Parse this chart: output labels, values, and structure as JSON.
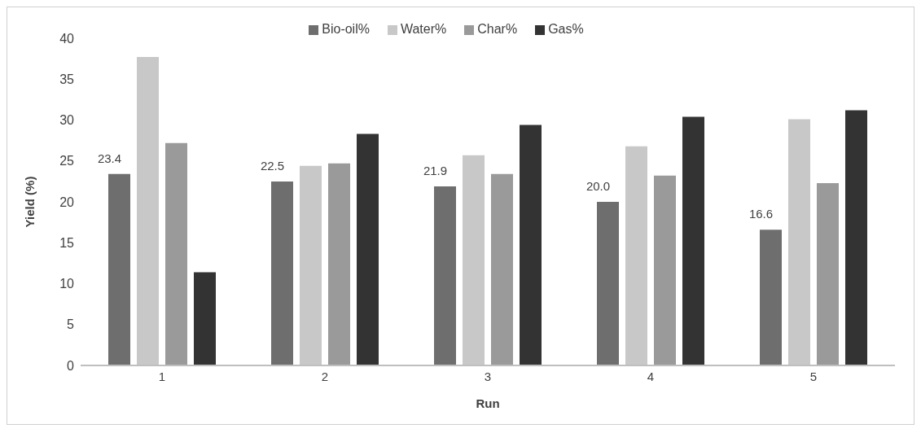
{
  "chart_data": {
    "type": "bar",
    "xlabel": "Run",
    "ylabel": "Yield (%)",
    "categories": [
      "1",
      "2",
      "3",
      "4",
      "5"
    ],
    "series": [
      {
        "name": "Bio-oil%",
        "color": "#6e6e6e",
        "values": [
          23.4,
          22.5,
          21.9,
          20.0,
          16.6
        ],
        "value_labels": [
          "23.4",
          "22.5",
          "21.9",
          "20.0",
          "16.6"
        ]
      },
      {
        "name": "Water%",
        "color": "#c8c8c8",
        "values": [
          37.7,
          24.4,
          25.7,
          26.8,
          30.1
        ]
      },
      {
        "name": "Char%",
        "color": "#9a9a9a",
        "values": [
          27.2,
          24.7,
          23.4,
          23.2,
          22.3
        ]
      },
      {
        "name": "Gas%",
        "color": "#333333",
        "values": [
          11.4,
          28.3,
          29.4,
          30.4,
          31.2
        ]
      }
    ],
    "ylim": [
      0,
      40
    ],
    "yticks": [
      0,
      5,
      10,
      15,
      20,
      25,
      30,
      35,
      40
    ],
    "grid": false,
    "legend": "top"
  }
}
